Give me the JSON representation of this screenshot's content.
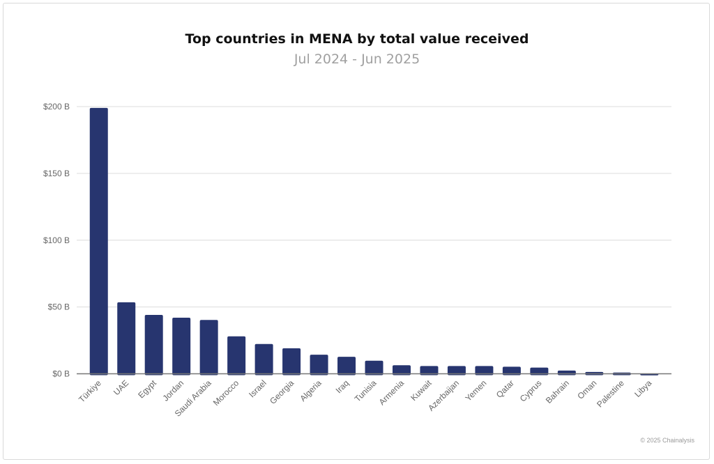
{
  "chart_data": {
    "type": "bar",
    "title": "Top countries in MENA by total value received",
    "subtitle": "Jul 2024 - Jun 2025",
    "xlabel": "",
    "ylabel": "",
    "categories": [
      "Türkiye",
      "UAE",
      "Egypt",
      "Jordan",
      "Saudi Arabia",
      "Morocco",
      "Israel",
      "Georgia",
      "Algeria",
      "Iraq",
      "Tunisia",
      "Armenia",
      "Kuwait",
      "Azerbaijan",
      "Yemen",
      "Qatar",
      "Cyprus",
      "Bahrain",
      "Oman",
      "Palestine",
      "Libya"
    ],
    "values": [
      199,
      53.5,
      44.1,
      42.0,
      40.3,
      28.0,
      22.3,
      19.1,
      14.3,
      12.7,
      9.8,
      6.4,
      5.8,
      5.8,
      5.8,
      5.3,
      4.6,
      2.4,
      1.4,
      0.9,
      0.1
    ],
    "unit": "USD billions",
    "ylim": [
      0,
      200
    ],
    "yticks": [
      0,
      50,
      100,
      150,
      200
    ],
    "ytick_labels": [
      "$0 B",
      "$50 B",
      "$100 B",
      "$150 B",
      "$200 B"
    ],
    "grid": true,
    "legend": "none",
    "bar_color": "#27356f"
  },
  "credit": "© 2025 Chainalysis"
}
